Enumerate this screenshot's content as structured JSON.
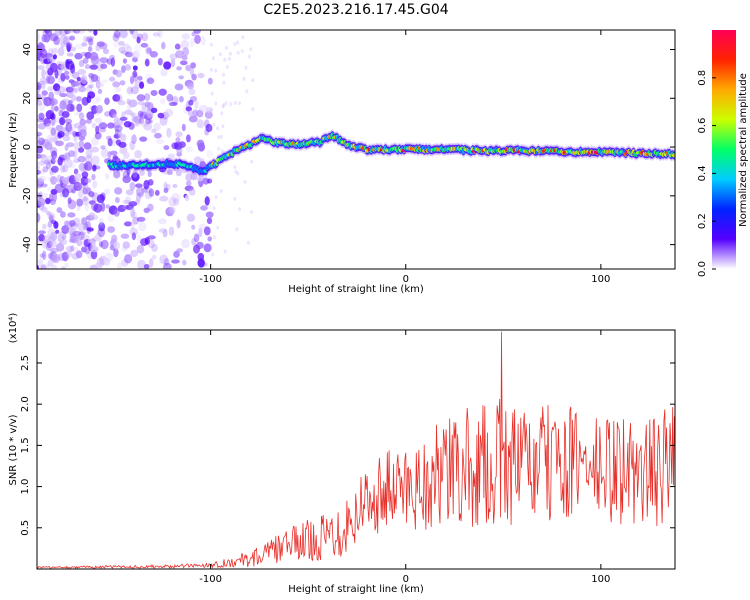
{
  "title": "C2E5.2023.216.17.45.G04",
  "chart_data": [
    {
      "type": "heatmap",
      "xlabel": "Height of straight line (km)",
      "ylabel": "Frequency (Hz)",
      "xlim": [
        -189,
        138
      ],
      "ylim": [
        -50,
        48
      ],
      "x_ticks": [
        -100,
        0,
        100
      ],
      "x_tick_labels": [
        "-100",
        "0",
        "100"
      ],
      "y_ticks": [
        -40,
        -20,
        0,
        20,
        40
      ],
      "y_tick_labels": [
        "-40",
        "-20",
        "0",
        "20",
        "40"
      ],
      "ridge": {
        "x": [
          -152,
          -140,
          -128,
          -115,
          -104,
          -96,
          -88,
          -80,
          -74,
          -68,
          -60,
          -52,
          -44,
          -38,
          -30,
          -20,
          -10,
          0,
          20,
          40,
          60,
          80,
          100,
          120,
          138
        ],
        "y": [
          -7.5,
          -7.5,
          -7,
          -7,
          -10,
          -6,
          -2,
          1,
          4,
          2,
          1,
          1.5,
          2,
          5,
          1,
          -1,
          -1,
          -1,
          -1,
          -1.5,
          -1.5,
          -2,
          -2,
          -2.5,
          -3
        ]
      },
      "colorbar": {
        "label": "Normalized spectral amplitude",
        "range": [
          0,
          1
        ],
        "ticks": [
          0.0,
          0.2,
          0.4,
          0.6,
          0.8
        ],
        "tick_labels": [
          "0.0",
          "0.2",
          "0.4",
          "0.6",
          "0.8"
        ],
        "colors": [
          "#ffffff",
          "#5500ff",
          "#0022ff",
          "#00ccff",
          "#00ff66",
          "#ccff00",
          "#ffaa00",
          "#ff2200",
          "#ff0055"
        ]
      }
    },
    {
      "type": "line",
      "xlabel": "Height of straight line (km)",
      "ylabel": "SNR (10 * v/v)",
      "y_scale_note": "(x10⁴)",
      "xlim": [
        -189,
        138
      ],
      "ylim": [
        0,
        2.9
      ],
      "x_ticks": [
        -100,
        0,
        100
      ],
      "x_tick_labels": [
        "-100",
        "0",
        "100"
      ],
      "y_ticks": [
        0.5,
        1.0,
        1.5,
        2.0,
        2.5
      ],
      "y_tick_labels": [
        "0.5",
        "1.0",
        "1.5",
        "2.0",
        "2.5"
      ],
      "color": "#e8302a",
      "envelope": {
        "x": [
          -189,
          -120,
          -100,
          -90,
          -80,
          -70,
          -60,
          -50,
          -40,
          -30,
          -20,
          -10,
          0,
          10,
          20,
          30,
          40,
          50,
          60,
          70,
          80,
          90,
          100,
          110,
          120,
          130,
          138
        ],
        "mean": [
          0.02,
          0.03,
          0.05,
          0.08,
          0.12,
          0.2,
          0.3,
          0.35,
          0.4,
          0.55,
          0.85,
          0.95,
          1.0,
          1.05,
          1.15,
          1.2,
          1.25,
          1.3,
          1.25,
          1.25,
          1.3,
          1.25,
          1.2,
          1.2,
          1.15,
          1.2,
          1.3
        ],
        "amp": [
          0.01,
          0.02,
          0.03,
          0.06,
          0.1,
          0.15,
          0.2,
          0.25,
          0.3,
          0.4,
          0.45,
          0.5,
          0.55,
          0.6,
          0.7,
          0.75,
          0.75,
          0.8,
          0.7,
          0.75,
          0.7,
          0.7,
          0.65,
          0.7,
          0.65,
          0.7,
          0.8
        ]
      },
      "peak": {
        "x": 49,
        "y": 2.88
      }
    }
  ]
}
